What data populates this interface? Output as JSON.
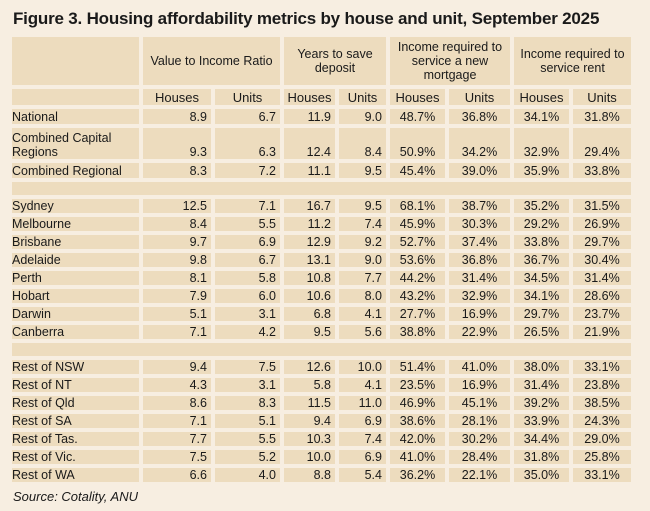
{
  "title": "Figure 3. Housing affordability metrics by house and unit, September 2025",
  "column_groups": [
    "Value to Income Ratio",
    "Years to save deposit",
    "Income required to service a new mortgage",
    "Income required to service rent"
  ],
  "subheaders": [
    "Houses",
    "Units",
    "Houses",
    "Units",
    "Houses",
    "Units",
    "Houses",
    "Units"
  ],
  "sections": [
    [
      {
        "label": "National",
        "values": [
          "8.9",
          "6.7",
          "11.9",
          "9.0",
          "48.7%",
          "36.8%",
          "34.1%",
          "31.8%"
        ]
      },
      {
        "label": "Combined Capital Regions",
        "values": [
          "9.3",
          "6.3",
          "12.4",
          "8.4",
          "50.9%",
          "34.2%",
          "32.9%",
          "29.4%"
        ]
      },
      {
        "label": "Combined Regional",
        "values": [
          "8.3",
          "7.2",
          "11.1",
          "9.5",
          "45.4%",
          "39.0%",
          "35.9%",
          "33.8%"
        ]
      }
    ],
    [
      {
        "label": "Sydney",
        "values": [
          "12.5",
          "7.1",
          "16.7",
          "9.5",
          "68.1%",
          "38.7%",
          "35.2%",
          "31.5%"
        ]
      },
      {
        "label": "Melbourne",
        "values": [
          "8.4",
          "5.5",
          "11.2",
          "7.4",
          "45.9%",
          "30.3%",
          "29.2%",
          "26.9%"
        ]
      },
      {
        "label": "Brisbane",
        "values": [
          "9.7",
          "6.9",
          "12.9",
          "9.2",
          "52.7%",
          "37.4%",
          "33.8%",
          "29.7%"
        ]
      },
      {
        "label": "Adelaide",
        "values": [
          "9.8",
          "6.7",
          "13.1",
          "9.0",
          "53.6%",
          "36.8%",
          "36.7%",
          "30.4%"
        ]
      },
      {
        "label": "Perth",
        "values": [
          "8.1",
          "5.8",
          "10.8",
          "7.7",
          "44.2%",
          "31.4%",
          "34.5%",
          "31.4%"
        ]
      },
      {
        "label": "Hobart",
        "values": [
          "7.9",
          "6.0",
          "10.6",
          "8.0",
          "43.2%",
          "32.9%",
          "34.1%",
          "28.6%"
        ]
      },
      {
        "label": "Darwin",
        "values": [
          "5.1",
          "3.1",
          "6.8",
          "4.1",
          "27.7%",
          "16.9%",
          "29.7%",
          "23.7%"
        ]
      },
      {
        "label": "Canberra",
        "values": [
          "7.1",
          "4.2",
          "9.5",
          "5.6",
          "38.8%",
          "22.9%",
          "26.5%",
          "21.9%"
        ]
      }
    ],
    [
      {
        "label": "Rest of NSW",
        "values": [
          "9.4",
          "7.5",
          "12.6",
          "10.0",
          "51.4%",
          "41.0%",
          "38.0%",
          "33.1%"
        ]
      },
      {
        "label": "Rest of NT",
        "values": [
          "4.3",
          "3.1",
          "5.8",
          "4.1",
          "23.5%",
          "16.9%",
          "31.4%",
          "23.8%"
        ]
      },
      {
        "label": "Rest of Qld",
        "values": [
          "8.6",
          "8.3",
          "11.5",
          "11.0",
          "46.9%",
          "45.1%",
          "39.2%",
          "38.5%"
        ]
      },
      {
        "label": "Rest of SA",
        "values": [
          "7.1",
          "5.1",
          "9.4",
          "6.9",
          "38.6%",
          "28.1%",
          "33.9%",
          "24.3%"
        ]
      },
      {
        "label": "Rest of Tas.",
        "values": [
          "7.7",
          "5.5",
          "10.3",
          "7.4",
          "42.0%",
          "30.2%",
          "34.4%",
          "29.0%"
        ]
      },
      {
        "label": "Rest of Vic.",
        "values": [
          "7.5",
          "5.2",
          "10.0",
          "6.9",
          "41.0%",
          "28.4%",
          "31.8%",
          "25.8%"
        ]
      },
      {
        "label": "Rest of WA",
        "values": [
          "6.6",
          "4.0",
          "8.8",
          "5.4",
          "36.2%",
          "22.1%",
          "35.0%",
          "33.1%"
        ]
      }
    ]
  ],
  "source": "Source: Cotality, ANU",
  "colors": {
    "background": "#f7eee1",
    "cell": "#eddcbe"
  }
}
